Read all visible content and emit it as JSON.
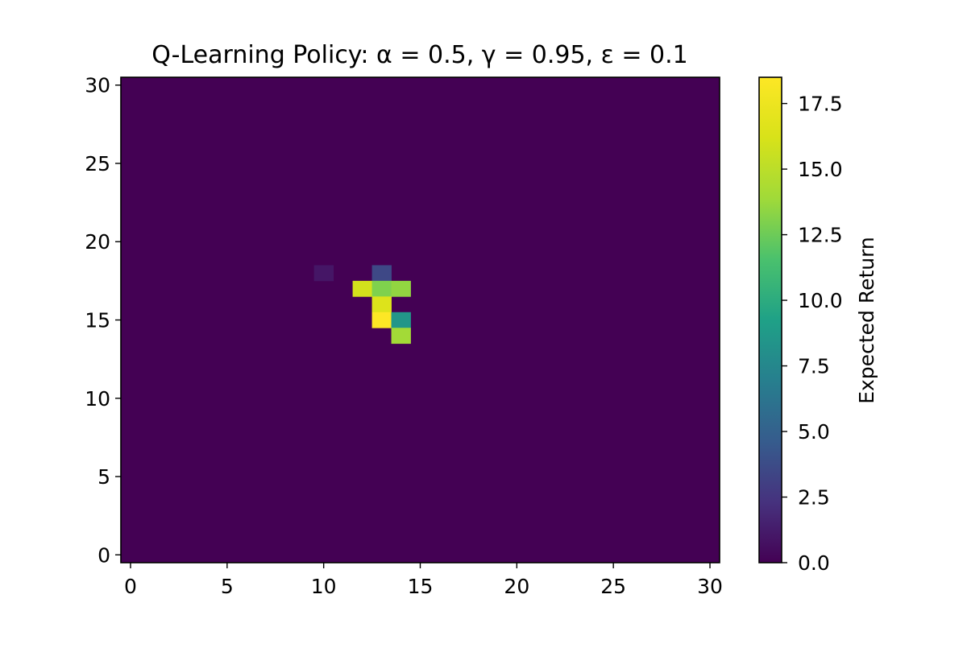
{
  "chart_data": {
    "type": "heatmap",
    "title": "Q-Learning Policy: α = 0.5, γ = 0.95, ε = 0.1",
    "xlabel": "",
    "ylabel": "",
    "grid_size": [
      31,
      31
    ],
    "xlim": [
      -0.5,
      30.5
    ],
    "ylim": [
      -0.5,
      30.5
    ],
    "xticks": [
      0,
      5,
      10,
      15,
      20,
      25,
      30
    ],
    "yticks": [
      0,
      5,
      10,
      15,
      20,
      25,
      30
    ],
    "background_value": 0.0,
    "cells": [
      {
        "x": 10,
        "y": 18,
        "value": 1.0
      },
      {
        "x": 13,
        "y": 18,
        "value": 3.5
      },
      {
        "x": 12,
        "y": 17,
        "value": 16.0
      },
      {
        "x": 13,
        "y": 17,
        "value": 13.0
      },
      {
        "x": 14,
        "y": 17,
        "value": 13.5
      },
      {
        "x": 13,
        "y": 16,
        "value": 16.5
      },
      {
        "x": 13,
        "y": 15,
        "value": 18.5
      },
      {
        "x": 14,
        "y": 15,
        "value": 8.5
      },
      {
        "x": 14,
        "y": 14,
        "value": 14.0
      }
    ],
    "colormap": "viridis",
    "colorbar": {
      "label": "Expected Return",
      "range": [
        0.0,
        18.5
      ],
      "ticks": [
        "0.0",
        "2.5",
        "5.0",
        "7.5",
        "10.0",
        "12.5",
        "15.0",
        "17.5"
      ]
    }
  }
}
